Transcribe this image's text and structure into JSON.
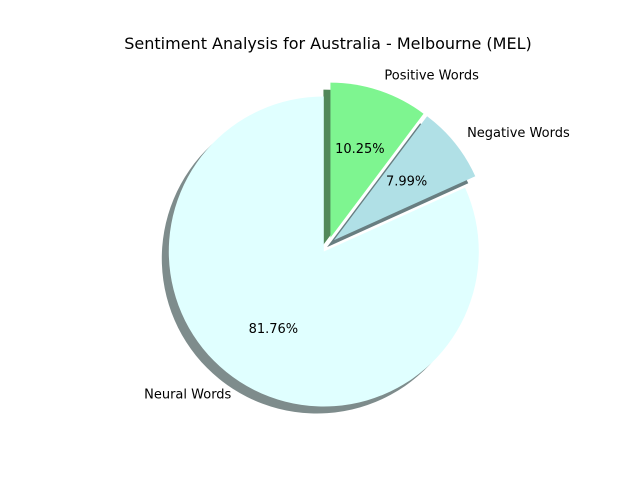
{
  "chart_data": {
    "type": "pie",
    "title": "Sentiment Analysis for Australia - Melbourne (MEL)",
    "slices": [
      {
        "label": "Positive Words",
        "value": 10.25,
        "pct_label": "10.25%",
        "color": "#7ef590",
        "explode": true
      },
      {
        "label": "Negative Words",
        "value": 7.99,
        "pct_label": "7.99%",
        "color": "#b0e0e6",
        "explode": true
      },
      {
        "label": "Neural Words",
        "value": 81.76,
        "pct_label": "81.76%",
        "color": "#e0ffff",
        "explode": true
      }
    ],
    "start_angle_deg": 90,
    "direction": "clockwise",
    "shadow": true,
    "legend": false,
    "grid": false
  }
}
